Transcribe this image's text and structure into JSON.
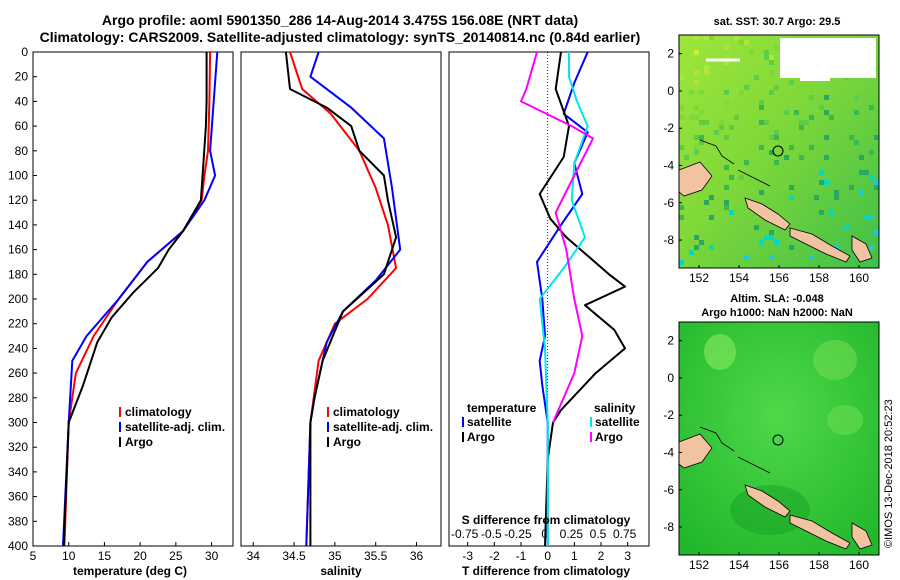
{
  "header": {
    "title_line1": "Argo profile: aoml 5901350_286 14-Aug-2014 3.475S 156.08E (NRT data)",
    "title_line2": "Climatology: CARS2009. Satellite-adjusted climatology: synTS_20140814.nc (0.84d earlier)"
  },
  "colors": {
    "climatology": "#ff0000",
    "satellite": "#0000ff",
    "argo": "#000000",
    "sat_salinity": "#00e5ee",
    "clim_salinity": "#ff00ff"
  },
  "credit": "©IMOS 13-Dec-2018 20:52:23",
  "chart_data": [
    {
      "id": "temperature",
      "type": "line",
      "xlabel": "temperature (deg C)",
      "xlim": [
        5,
        33
      ],
      "xticks": [
        5,
        10,
        15,
        20,
        25,
        30
      ],
      "ylim": [
        0,
        400
      ],
      "yticks": [
        0,
        20,
        40,
        60,
        80,
        100,
        120,
        140,
        160,
        180,
        200,
        220,
        240,
        260,
        280,
        300,
        320,
        340,
        360,
        380,
        400
      ],
      "legend": [
        "climatology",
        "satellite-adj. clim.",
        "Argo"
      ],
      "series": [
        {
          "name": "climatology",
          "color": "red",
          "points": [
            [
              29.8,
              0
            ],
            [
              29.7,
              40
            ],
            [
              29.5,
              80
            ],
            [
              29.0,
              100
            ],
            [
              28.6,
              120
            ],
            [
              26.0,
              145
            ],
            [
              21.0,
              170
            ],
            [
              17.0,
              200
            ],
            [
              13.5,
              230
            ],
            [
              11.0,
              260
            ],
            [
              10.0,
              300
            ],
            [
              9.4,
              400
            ]
          ]
        },
        {
          "name": "satellite-adj. clim.",
          "color": "blue",
          "points": [
            [
              30.8,
              0
            ],
            [
              30.3,
              40
            ],
            [
              29.8,
              80
            ],
            [
              30.5,
              100
            ],
            [
              29.0,
              120
            ],
            [
              26.0,
              145
            ],
            [
              21.0,
              170
            ],
            [
              17.0,
              200
            ],
            [
              12.5,
              230
            ],
            [
              10.5,
              250
            ],
            [
              10.0,
              300
            ],
            [
              9.2,
              400
            ]
          ]
        },
        {
          "name": "Argo",
          "color": "black",
          "points": [
            [
              29.3,
              0
            ],
            [
              29.3,
              40
            ],
            [
              29.2,
              60
            ],
            [
              28.5,
              120
            ],
            [
              26.0,
              145
            ],
            [
              24.0,
              160
            ],
            [
              22.5,
              175
            ],
            [
              19.0,
              195
            ],
            [
              16.0,
              215
            ],
            [
              14.0,
              235
            ],
            [
              12.0,
              270
            ],
            [
              10.0,
              300
            ],
            [
              9.3,
              400
            ]
          ]
        }
      ]
    },
    {
      "id": "salinity",
      "type": "line",
      "xlabel": "salinity",
      "xlim": [
        33.85,
        36.3
      ],
      "xticks": [
        34,
        34.5,
        35,
        35.5,
        36
      ],
      "ylim": [
        0,
        400
      ],
      "legend": [
        "climatology",
        "satellite-adj. clim.",
        "Argo"
      ],
      "series": [
        {
          "name": "climatology",
          "color": "red",
          "points": [
            [
              34.45,
              0
            ],
            [
              34.6,
              30
            ],
            [
              34.95,
              50
            ],
            [
              35.3,
              80
            ],
            [
              35.5,
              110
            ],
            [
              35.65,
              140
            ],
            [
              35.75,
              175
            ],
            [
              35.4,
              200
            ],
            [
              35.0,
              220
            ],
            [
              34.8,
              250
            ],
            [
              34.7,
              300
            ],
            [
              34.65,
              400
            ]
          ]
        },
        {
          "name": "satellite-adj. clim.",
          "color": "blue",
          "points": [
            [
              34.8,
              0
            ],
            [
              34.7,
              20
            ],
            [
              35.2,
              45
            ],
            [
              35.6,
              70
            ],
            [
              35.7,
              110
            ],
            [
              35.8,
              160
            ],
            [
              35.5,
              185
            ],
            [
              35.1,
              210
            ],
            [
              34.9,
              235
            ],
            [
              34.75,
              280
            ],
            [
              34.7,
              300
            ],
            [
              34.65,
              400
            ]
          ]
        },
        {
          "name": "Argo",
          "color": "black",
          "points": [
            [
              34.4,
              0
            ],
            [
              34.45,
              30
            ],
            [
              34.9,
              45
            ],
            [
              35.2,
              60
            ],
            [
              35.3,
              80
            ],
            [
              35.6,
              100
            ],
            [
              35.65,
              120
            ],
            [
              35.75,
              150
            ],
            [
              35.6,
              180
            ],
            [
              35.1,
              210
            ],
            [
              34.85,
              250
            ],
            [
              34.75,
              280
            ],
            [
              34.7,
              300
            ],
            [
              34.7,
              400
            ]
          ]
        }
      ]
    },
    {
      "id": "difference",
      "type": "line",
      "xlabel": "T difference from climatology",
      "xlabel2": "S difference from climatology",
      "xlim": [
        -3.7,
        3.8
      ],
      "xticks": [
        -3,
        -2,
        -1,
        0,
        1,
        2,
        3
      ],
      "x2tick_labels": [
        "-0.75",
        "-0.5",
        "-0.25",
        "0",
        "0.25",
        "0.5",
        "0.75"
      ],
      "ylim": [
        0,
        400
      ],
      "legend_left_title": "temperature",
      "legend_left": [
        "satellite",
        "Argo"
      ],
      "legend_right_title": "salinity",
      "legend_right": [
        "satellite",
        "Argo"
      ],
      "series": [
        {
          "name": "T satellite",
          "color": "blue",
          "points": [
            [
              1.5,
              0
            ],
            [
              1.0,
              25
            ],
            [
              0.6,
              50
            ],
            [
              1.5,
              65
            ],
            [
              1.0,
              90
            ],
            [
              1.3,
              115
            ],
            [
              0.5,
              140
            ],
            [
              -0.4,
              170
            ],
            [
              -0.2,
              200
            ],
            [
              -0.1,
              230
            ],
            [
              -0.3,
              250
            ],
            [
              -0.2,
              270
            ],
            [
              0,
              300
            ],
            [
              0,
              400
            ]
          ]
        },
        {
          "name": "T Argo",
          "color": "black",
          "points": [
            [
              0.5,
              0
            ],
            [
              0.3,
              30
            ],
            [
              0.8,
              60
            ],
            [
              0.6,
              85
            ],
            [
              -0.3,
              115
            ],
            [
              0.1,
              135
            ],
            [
              0.7,
              150
            ],
            [
              1.5,
              165
            ],
            [
              2.3,
              180
            ],
            [
              2.9,
              190
            ],
            [
              1.4,
              205
            ],
            [
              2.5,
              225
            ],
            [
              2.9,
              240
            ],
            [
              1.8,
              260
            ],
            [
              0.5,
              290
            ],
            [
              0.2,
              300
            ],
            [
              0,
              330
            ],
            [
              -0.1,
              400
            ]
          ]
        },
        {
          "name": "S satellite",
          "color": "cyan",
          "points": [
            [
              0.8,
              0
            ],
            [
              0.8,
              20
            ],
            [
              1.1,
              40
            ],
            [
              1.5,
              60
            ],
            [
              1.0,
              90
            ],
            [
              0.9,
              120
            ],
            [
              1.4,
              150
            ],
            [
              0.6,
              175
            ],
            [
              -0.3,
              200
            ],
            [
              -0.1,
              240
            ],
            [
              0,
              300
            ],
            [
              0,
              400
            ]
          ]
        },
        {
          "name": "S Argo",
          "color": "magenta",
          "points": [
            [
              -0.4,
              0
            ],
            [
              -0.8,
              30
            ],
            [
              -1.0,
              40
            ],
            [
              0.9,
              60
            ],
            [
              1.7,
              70
            ],
            [
              1.0,
              100
            ],
            [
              0.3,
              130
            ],
            [
              0.7,
              160
            ],
            [
              1.0,
              200
            ],
            [
              1.3,
              230
            ],
            [
              1.0,
              260
            ],
            [
              0.2,
              300
            ]
          ]
        }
      ]
    },
    {
      "id": "sst_map",
      "type": "heatmap",
      "title": "sat. SST: 30.7 Argo: 29.5",
      "xlim": [
        151,
        161
      ],
      "ylim": [
        -9.5,
        3
      ],
      "xticks": [
        152,
        154,
        156,
        158,
        160
      ],
      "yticks": [
        2,
        0,
        -2,
        -4,
        -6,
        -8
      ],
      "marker": [
        156.08,
        -3.475
      ]
    },
    {
      "id": "sla_map",
      "type": "heatmap",
      "title": "Altim. SLA: -0.048",
      "subtitle": "Argo h1000: NaN h2000: NaN",
      "xlim": [
        151,
        161
      ],
      "ylim": [
        -9.5,
        3
      ],
      "xticks": [
        152,
        154,
        156,
        158,
        160
      ],
      "yticks": [
        2,
        0,
        -2,
        -4,
        -6,
        -8
      ],
      "marker": [
        156.08,
        -3.475
      ]
    }
  ]
}
